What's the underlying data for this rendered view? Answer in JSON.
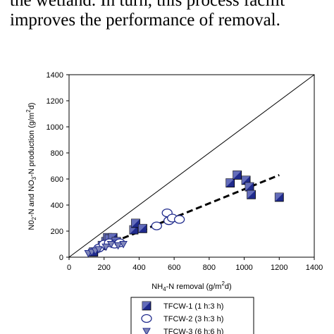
{
  "paper_text": {
    "line1": "the wetland. In turn, this process facilit",
    "line2": "improves the performance of removal."
  },
  "chart_data": {
    "type": "scatter",
    "title": "",
    "xlabel": "NH4-N removal (g/m2d)",
    "ylabel": "N02-N and NO3-N production (g/m2d)",
    "xlim": [
      0,
      1400
    ],
    "ylim": [
      0,
      1400
    ],
    "x_ticks": [
      0,
      200,
      400,
      600,
      800,
      1000,
      1200,
      1400
    ],
    "y_ticks": [
      0,
      200,
      400,
      600,
      800,
      1000,
      1200,
      1400
    ],
    "grid": false,
    "reference_line": {
      "type": "1:1",
      "from": [
        0,
        0
      ],
      "to": [
        1400,
        1400
      ]
    },
    "trend_line": {
      "style": "dashed",
      "from": [
        150,
        60
      ],
      "to": [
        1200,
        630
      ]
    },
    "legend_position": "bottom",
    "series": [
      {
        "name": "TFCW-1 (1 h:3 h)",
        "marker": "filled-square",
        "color": "#1f2a8c",
        "points": [
          [
            140,
            40
          ],
          [
            190,
            90
          ],
          [
            210,
            120
          ],
          [
            220,
            150
          ],
          [
            230,
            140
          ],
          [
            250,
            150
          ],
          [
            270,
            120
          ],
          [
            370,
            210
          ],
          [
            380,
            260
          ],
          [
            420,
            220
          ],
          [
            920,
            570
          ],
          [
            960,
            630
          ],
          [
            1010,
            590
          ],
          [
            1030,
            540
          ],
          [
            1040,
            480
          ],
          [
            1200,
            460
          ]
        ]
      },
      {
        "name": "TFCW-2 (3 h:3 h)",
        "marker": "open-circle",
        "color": "#1f2a8c",
        "points": [
          [
            170,
            70
          ],
          [
            200,
            100
          ],
          [
            230,
            110
          ],
          [
            260,
            100
          ],
          [
            290,
            110
          ],
          [
            500,
            240
          ],
          [
            560,
            340
          ],
          [
            570,
            280
          ],
          [
            590,
            300
          ],
          [
            630,
            290
          ]
        ]
      },
      {
        "name": "TFCW-3 (6 h:6 h)",
        "marker": "triangle-down",
        "color": "#1f2a8c",
        "points": [
          [
            110,
            30
          ],
          [
            130,
            40
          ],
          [
            150,
            50
          ],
          [
            170,
            60
          ],
          [
            210,
            80
          ],
          [
            240,
            100
          ],
          [
            280,
            90
          ],
          [
            310,
            100
          ]
        ]
      }
    ]
  },
  "axis_text": {
    "xlabel_main": "NH",
    "xlabel_sub": "4",
    "xlabel_rest": "-N removal (g/m",
    "xlabel_sup": "2",
    "xlabel_end": "d)",
    "ylabel_1": "N0",
    "ylabel_sub1": "2",
    "ylabel_2": "-N and NO",
    "ylabel_sub2": "3",
    "ylabel_3": "-N production (g/m",
    "ylabel_sup": "2",
    "ylabel_4": "d)"
  },
  "colors": {
    "marker": "#1f2a8c",
    "axis": "#000000"
  }
}
